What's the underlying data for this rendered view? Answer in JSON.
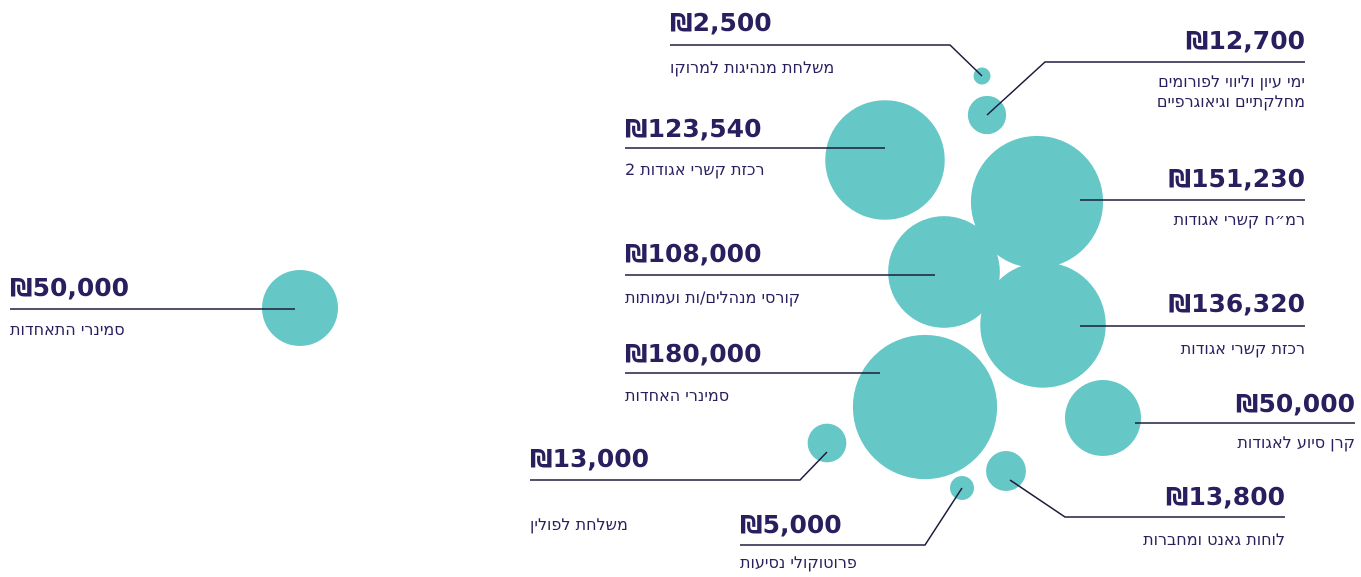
{
  "chart_data": {
    "type": "bubble",
    "color": "#66c7c7",
    "categories": [
      "משלחת מנהיגות למרוקו",
      "ימי עיון וליווי לפורומים מחלקתיים וגיאוגרפיים",
      "רכזת קשרי אגודות 2",
      "רמ״ח קשרי אגודות",
      "קורסי מנהלים/ות ועמותות",
      "רכזת קשרי אגודות",
      "סמינרי האחדות",
      "קרן סיוע לאגודות",
      "משלחת לפולין",
      "לוחות גאנט ומחברות",
      "פרוטוקולי נסיעות",
      "סמינרי התאחדות"
    ],
    "values": [
      2500,
      12700,
      123540,
      151230,
      108000,
      136320,
      180000,
      50000,
      13000,
      13800,
      5000,
      50000
    ],
    "value_labels": [
      "₪2,500",
      "₪12,700",
      "₪123,540",
      "₪151,230",
      "₪108,000",
      "₪136,320",
      "₪180,000",
      "₪50,000",
      "₪13,000",
      "₪13,800",
      "₪5,000",
      "₪50,000"
    ]
  }
}
